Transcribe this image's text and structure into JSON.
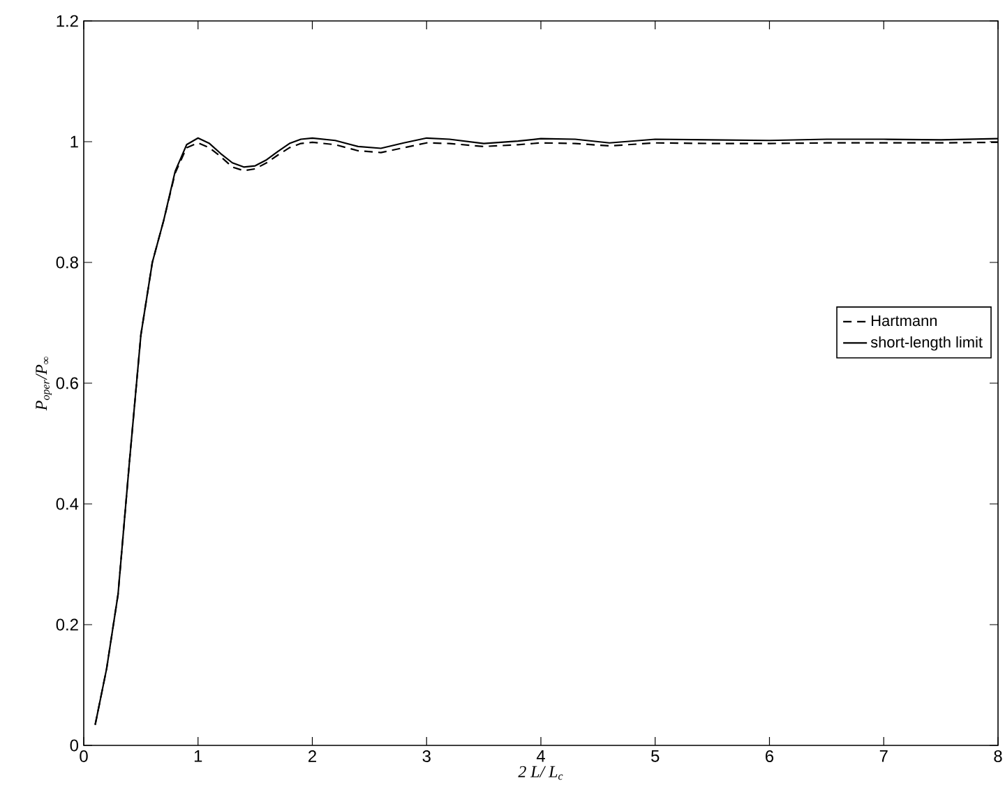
{
  "chart_data": {
    "type": "line",
    "xlabel": "2 L/ L$_{c}$",
    "ylabel": "P$_{oper}$/P$_{∞}$",
    "xlim": [
      0,
      8
    ],
    "ylim": [
      0,
      1.2
    ],
    "xticks": [
      0,
      1,
      2,
      3,
      4,
      5,
      6,
      7,
      8
    ],
    "yticks": [
      0,
      0.2,
      0.4,
      0.6,
      0.8,
      1,
      1.2
    ],
    "grid": false,
    "legend": "right",
    "series": [
      {
        "name": "Hartmann",
        "color": "#000000",
        "line_style": "dashed",
        "x": [
          0.1,
          0.2,
          0.3,
          0.4,
          0.5,
          0.6,
          0.7,
          0.8,
          0.9,
          1.0,
          1.1,
          1.2,
          1.3,
          1.4,
          1.5,
          1.6,
          1.7,
          1.8,
          1.9,
          2.0,
          2.2,
          2.4,
          2.6,
          2.8,
          3.0,
          3.2,
          3.5,
          3.8,
          4.0,
          4.3,
          4.6,
          5.0,
          5.5,
          6.0,
          6.5,
          7.0,
          7.5,
          8.0
        ],
        "values": [
          0.034,
          0.127,
          0.25,
          0.47,
          0.68,
          0.8,
          0.87,
          0.948,
          0.99,
          0.998,
          0.99,
          0.975,
          0.958,
          0.952,
          0.955,
          0.965,
          0.978,
          0.99,
          0.997,
          0.999,
          0.995,
          0.985,
          0.982,
          0.99,
          0.998,
          0.997,
          0.992,
          0.995,
          0.998,
          0.997,
          0.993,
          0.998,
          0.997,
          0.997,
          0.998,
          0.998,
          0.998,
          0.999
        ]
      },
      {
        "name": "short-length limit",
        "color": "#000000",
        "line_style": "solid",
        "x": [
          0.1,
          0.2,
          0.3,
          0.4,
          0.5,
          0.6,
          0.7,
          0.8,
          0.9,
          1.0,
          1.1,
          1.2,
          1.3,
          1.4,
          1.5,
          1.6,
          1.7,
          1.8,
          1.9,
          2.0,
          2.2,
          2.4,
          2.6,
          2.8,
          3.0,
          3.2,
          3.5,
          3.8,
          4.0,
          4.3,
          4.6,
          5.0,
          5.5,
          6.0,
          6.5,
          7.0,
          7.5,
          8.0
        ],
        "values": [
          0.034,
          0.127,
          0.25,
          0.47,
          0.68,
          0.8,
          0.87,
          0.951,
          0.995,
          1.006,
          0.997,
          0.98,
          0.965,
          0.958,
          0.96,
          0.97,
          0.984,
          0.997,
          1.004,
          1.006,
          1.002,
          0.992,
          0.989,
          0.998,
          1.006,
          1.004,
          0.997,
          1.001,
          1.005,
          1.004,
          0.998,
          1.004,
          1.003,
          1.002,
          1.004,
          1.004,
          1.003,
          1.005
        ]
      }
    ]
  }
}
